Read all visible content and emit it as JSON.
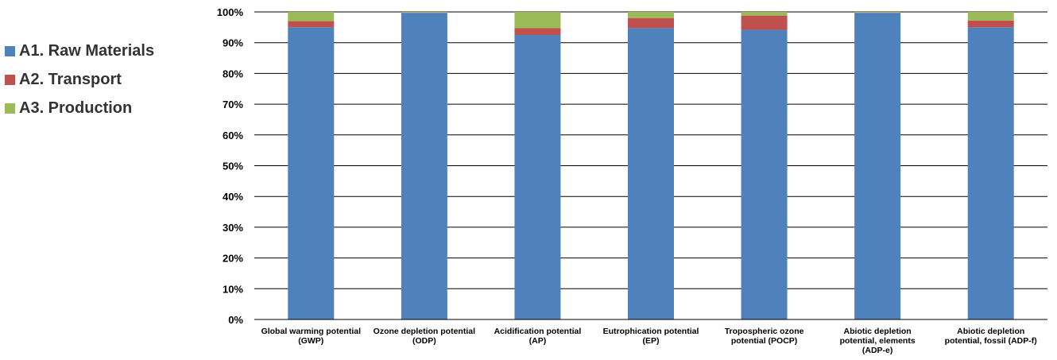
{
  "chart_data": {
    "type": "bar",
    "stacked": true,
    "title": "",
    "xlabel": "",
    "ylabel": "",
    "ylim": [
      0,
      100
    ],
    "y_ticks": [
      "0%",
      "10%",
      "20%",
      "30%",
      "40%",
      "50%",
      "60%",
      "70%",
      "80%",
      "90%",
      "100%"
    ],
    "grid": true,
    "legend_position": "left",
    "categories": [
      [
        "Global warming potential",
        "(GWP)"
      ],
      [
        "Ozone depletion potential",
        "(ODP)"
      ],
      [
        "Acidification potential",
        "(AP)"
      ],
      [
        "Eutrophication potential",
        "(EP)"
      ],
      [
        "Tropospheric ozone",
        "potential (POCP)"
      ],
      [
        "Abiotic depletion",
        "potential, elements",
        "(ADP-e)"
      ],
      [
        "Abiotic depletion",
        "potential, fossil (ADP-f)"
      ]
    ],
    "series": [
      {
        "name": "A1. Raw Materials",
        "color": "#4F81BD",
        "values": [
          95.0,
          99.7,
          92.5,
          94.8,
          94.2,
          99.7,
          95.0
        ]
      },
      {
        "name": "A2. Transport",
        "color": "#C0504D",
        "values": [
          2.0,
          0.1,
          2.2,
          3.2,
          4.6,
          0.1,
          2.2
        ]
      },
      {
        "name": "A3. Production",
        "color": "#9BBB59",
        "values": [
          3.0,
          0.2,
          5.3,
          2.0,
          1.2,
          0.2,
          2.8
        ]
      }
    ]
  }
}
